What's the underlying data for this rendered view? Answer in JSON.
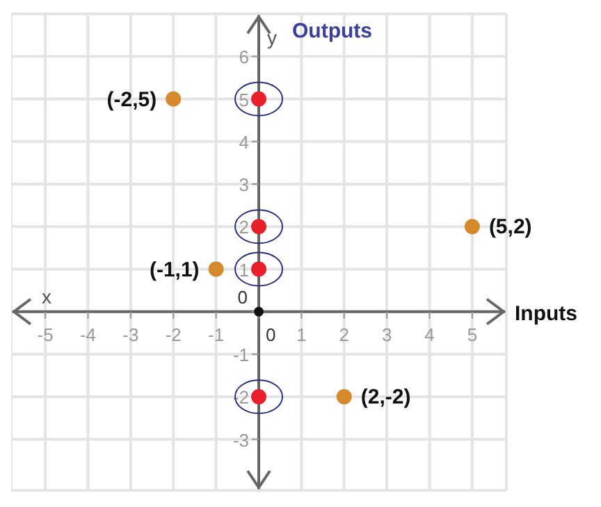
{
  "chart_data": {
    "type": "scatter",
    "xlabel": "Inputs",
    "ylabel": "Outputs",
    "annotations": [
      "x",
      "y",
      "0",
      "0",
      {
        "text": "(-2,5)",
        "x": -2,
        "y": 5
      },
      {
        "text": "(-1,1)",
        "x": -1,
        "y": 1
      },
      {
        "text": "(5,2)",
        "x": 5,
        "y": 2
      },
      {
        "text": "(2,-2)",
        "x": 2,
        "y": -2
      }
    ],
    "xlim": [
      -5.8,
      5.8
    ],
    "ylim": [
      -4.2,
      7
    ],
    "xticks": [
      -5,
      -4,
      -3,
      -2,
      -1,
      {
        "value": 0,
        "label": null
      },
      1,
      2,
      3,
      4,
      5
    ],
    "yticks": [
      -3,
      -2,
      -1,
      {
        "value": 0,
        "label": null
      },
      1,
      2,
      3,
      4,
      5,
      6
    ],
    "grid": true,
    "marker": "circle",
    "series": [
      {
        "color": "#d4892c",
        "x": [
          -2,
          -1,
          5,
          2
        ],
        "values": [
          5,
          1,
          2,
          -2
        ]
      },
      {
        "color": "#e8202a",
        "x": [
          0,
          0,
          0,
          0
        ],
        "values": [
          5,
          2,
          1,
          -2
        ]
      }
    ]
  }
}
